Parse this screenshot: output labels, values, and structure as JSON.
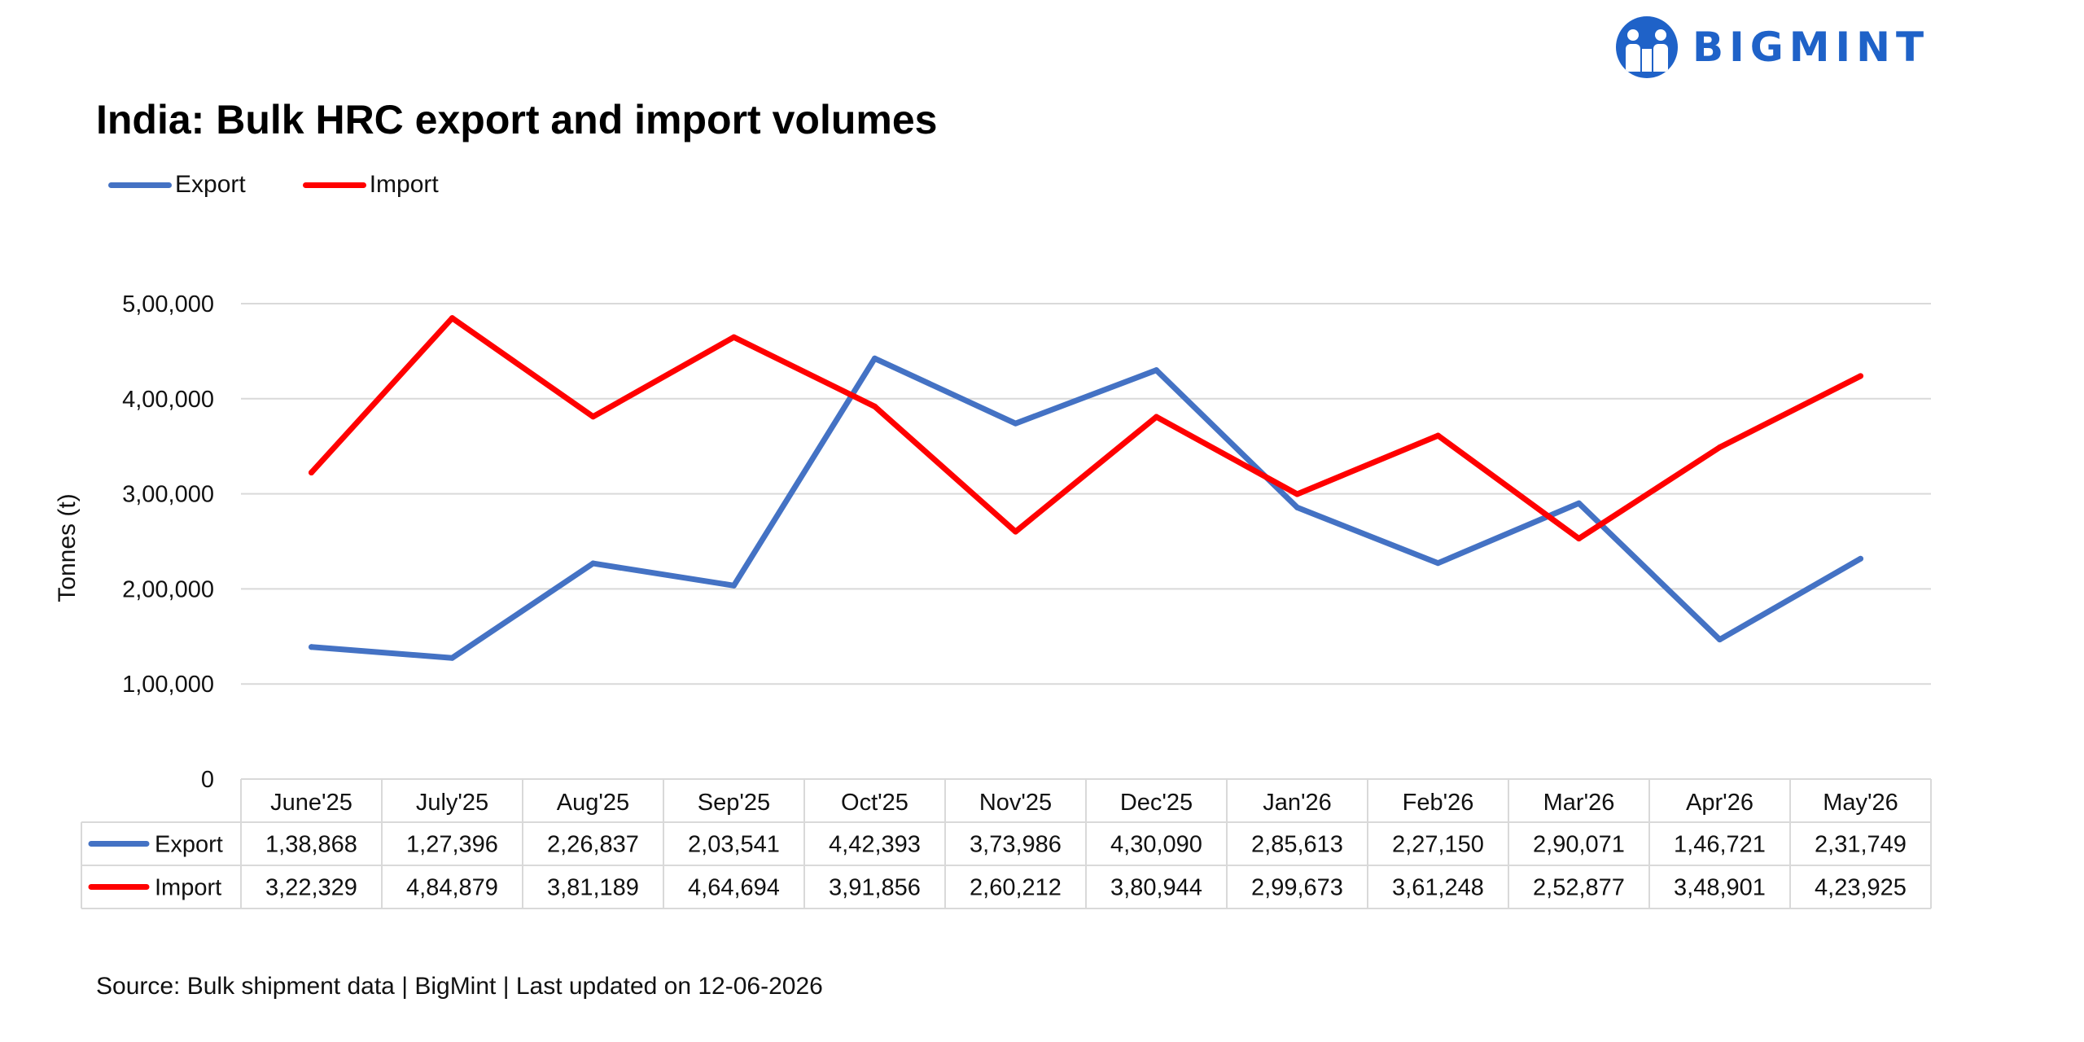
{
  "brand": {
    "name": "BIGMINT",
    "logo_icon": "bigmint-logo-icon",
    "color": "#1f62c8"
  },
  "chart_data": {
    "type": "line",
    "title": "India: Bulk HRC export and import volumes",
    "ylabel": "Tonnes (t)",
    "ylim": [
      0,
      500000
    ],
    "yticks": [
      0,
      100000,
      200000,
      300000,
      400000,
      500000
    ],
    "ytick_labels": [
      "0",
      "1,00,000",
      "2,00,000",
      "3,00,000",
      "4,00,000",
      "5,00,000"
    ],
    "grid": true,
    "legend_position": "top-left",
    "categories": [
      "June'25",
      "July'25",
      "Aug'25",
      "Sep'25",
      "Oct'25",
      "Nov'25",
      "Dec'25",
      "Jan'26",
      "Feb'26",
      "Mar'26",
      "Apr'26",
      "May'26"
    ],
    "series": [
      {
        "name": "Export",
        "color": "#4472c4",
        "values": [
          138868,
          127396,
          226837,
          203541,
          442393,
          373986,
          430090,
          285613,
          227150,
          290071,
          146721,
          231749
        ],
        "labels": [
          "1,38,868",
          "1,27,396",
          "2,26,837",
          "2,03,541",
          "4,42,393",
          "3,73,986",
          "4,30,090",
          "2,85,613",
          "2,27,150",
          "2,90,071",
          "1,46,721",
          "2,31,749"
        ]
      },
      {
        "name": "Import",
        "color": "#ff0000",
        "values": [
          322329,
          484879,
          381189,
          464694,
          391856,
          260212,
          380944,
          299673,
          361248,
          252877,
          348901,
          423925
        ],
        "labels": [
          "3,22,329",
          "4,84,879",
          "3,81,189",
          "4,64,694",
          "3,91,856",
          "2,60,212",
          "3,80,944",
          "2,99,673",
          "3,61,248",
          "2,52,877",
          "3,48,901",
          "4,23,925"
        ]
      }
    ]
  },
  "source": "Source: Bulk shipment data | BigMint | Last updated on 12-06-2026"
}
